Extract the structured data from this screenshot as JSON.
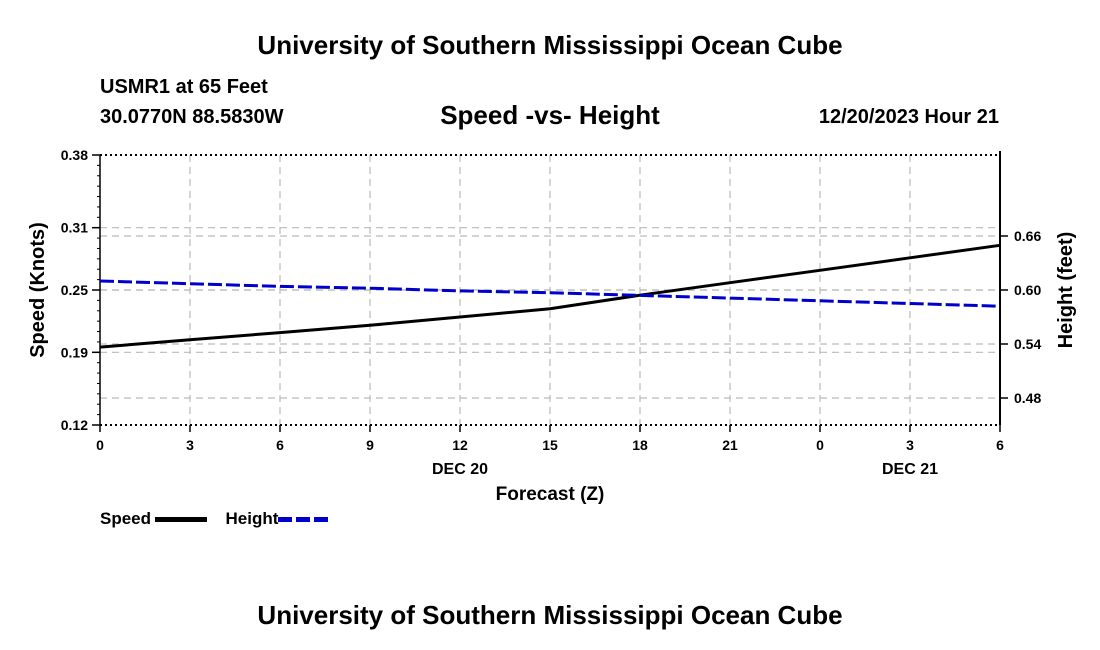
{
  "header": {
    "title": "University of Southern Mississippi Ocean Cube",
    "station": "USMR1 at 65 Feet",
    "coords": "30.0770N  88.5830W",
    "chart_title": "Speed -vs- Height",
    "datetime": "12/20/2023 Hour 21",
    "footer_title": "University of Southern Mississippi Ocean Cube"
  },
  "legend": {
    "speed_label": "Speed",
    "height_label": "Height"
  },
  "colors": {
    "speed": "#000000",
    "height": "#0000cc",
    "grid": "#bbbbbb"
  },
  "chart_data": {
    "type": "line",
    "title": "Speed -vs- Height",
    "xlabel": "Forecast (Z)",
    "ylabel": "Speed (Knots)",
    "y2label": "Height (feet)",
    "x": [
      0,
      3,
      6,
      9,
      12,
      15,
      18,
      21,
      24,
      27,
      30
    ],
    "x_tick_labels": [
      "0",
      "3",
      "6",
      "9",
      "12",
      "15",
      "18",
      "21",
      "0",
      "3",
      "6"
    ],
    "date_labels": [
      {
        "x": 12,
        "label": "DEC 20"
      },
      {
        "x": 27,
        "label": "DEC 21"
      }
    ],
    "xlim": [
      0,
      30
    ],
    "ylim": [
      0.12,
      0.38
    ],
    "y_ticks": [
      0.12,
      0.19,
      0.25,
      0.31,
      0.38
    ],
    "y_tick_labels": [
      "0.12",
      "0.19",
      "0.25",
      "0.31",
      "0.38"
    ],
    "y2lim": [
      0.45,
      0.75
    ],
    "y2_ticks": [
      0.48,
      0.54,
      0.6,
      0.66
    ],
    "y2_tick_labels": [
      "0.48",
      "0.54",
      "0.60",
      "0.66"
    ],
    "grid": true,
    "series": [
      {
        "name": "Speed",
        "axis": "left",
        "style": "solid",
        "x": [
          0,
          3,
          6,
          9,
          12,
          15,
          18,
          21,
          24,
          27,
          30
        ],
        "values": [
          0.195,
          0.202,
          0.209,
          0.216,
          0.224,
          0.232,
          0.245,
          0.257,
          0.269,
          0.281,
          0.293
        ]
      },
      {
        "name": "Height",
        "axis": "right",
        "style": "dashed",
        "x": [
          0,
          3,
          6,
          9,
          12,
          15,
          18,
          21,
          24,
          27,
          30
        ],
        "values": [
          0.61,
          0.607,
          0.604,
          0.602,
          0.599,
          0.597,
          0.594,
          0.591,
          0.588,
          0.585,
          0.582
        ]
      }
    ]
  }
}
